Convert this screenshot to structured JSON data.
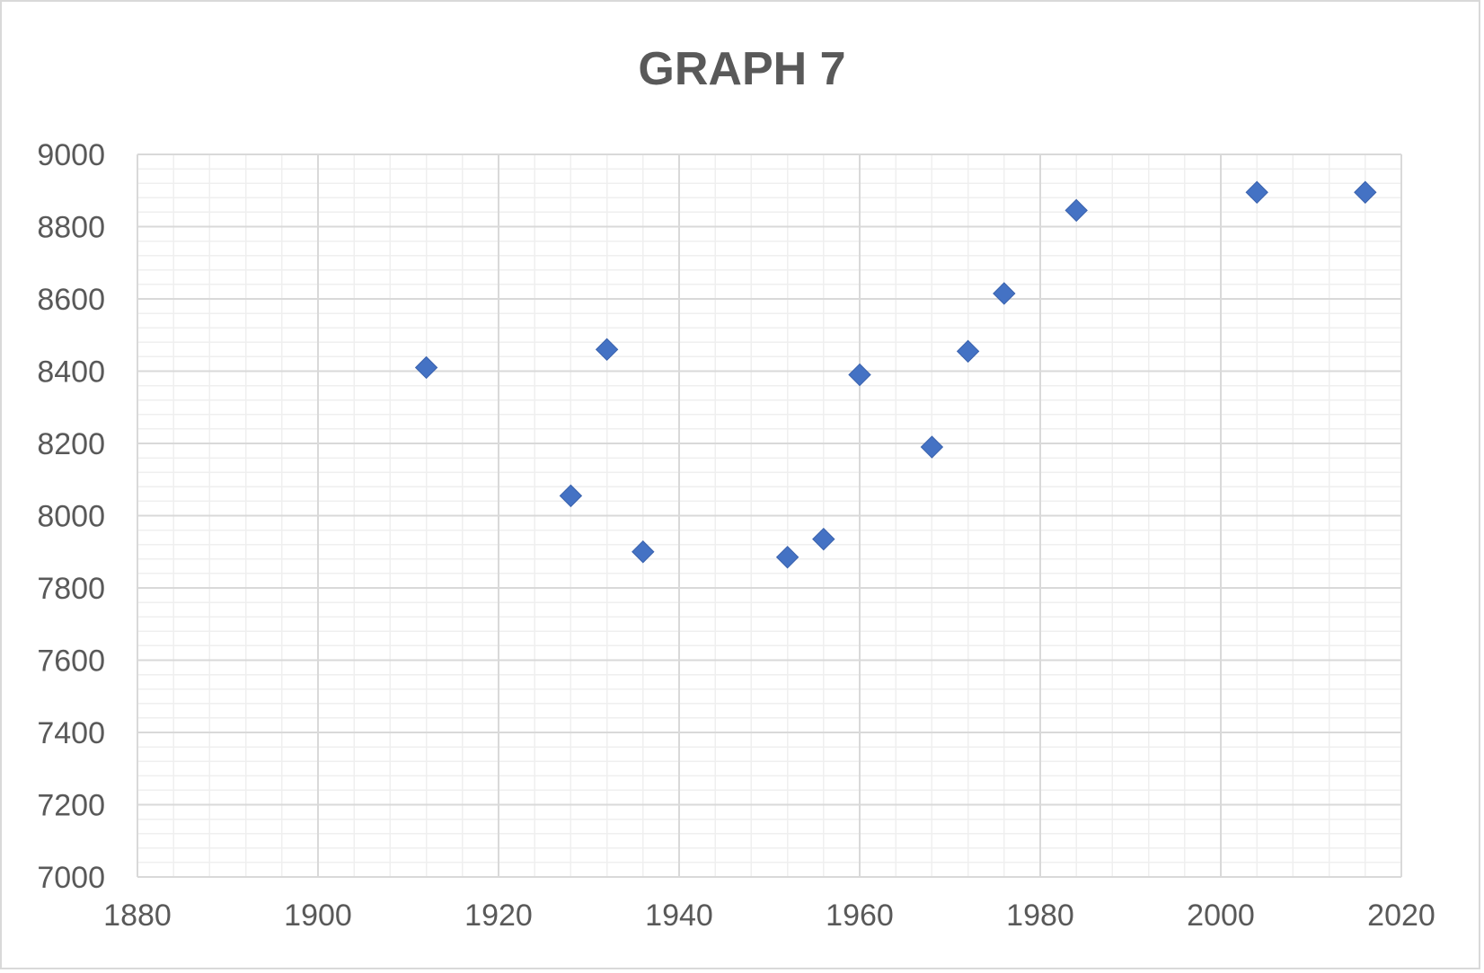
{
  "chart_data": {
    "type": "scatter",
    "title": "GRAPH 7",
    "xlabel": "",
    "ylabel": "",
    "xlim": [
      1880,
      2020
    ],
    "ylim": [
      7000,
      9000
    ],
    "x_major_step": 20,
    "x_minor_step": 4,
    "y_major_step": 200,
    "y_minor_step": 40,
    "grid": true,
    "legend": "none",
    "marker": "diamond",
    "marker_color": "#4472c4",
    "major_grid_color": "#d9d9d9",
    "minor_grid_color": "#efefef",
    "x_ticks": [
      "1880",
      "1900",
      "1920",
      "1940",
      "1960",
      "1980",
      "2000",
      "2020"
    ],
    "y_ticks": [
      "7000",
      "7200",
      "7400",
      "7600",
      "7800",
      "8000",
      "8200",
      "8400",
      "8600",
      "8800",
      "9000"
    ],
    "series": [
      {
        "points": [
          {
            "x": 1912,
            "y": 8410
          },
          {
            "x": 1928,
            "y": 8055
          },
          {
            "x": 1932,
            "y": 8460
          },
          {
            "x": 1936,
            "y": 7900
          },
          {
            "x": 1952,
            "y": 7885
          },
          {
            "x": 1956,
            "y": 7935
          },
          {
            "x": 1960,
            "y": 8390
          },
          {
            "x": 1968,
            "y": 8190
          },
          {
            "x": 1972,
            "y": 8455
          },
          {
            "x": 1976,
            "y": 8615
          },
          {
            "x": 1984,
            "y": 8845
          },
          {
            "x": 2004,
            "y": 8895
          },
          {
            "x": 2016,
            "y": 8895
          }
        ]
      }
    ]
  }
}
